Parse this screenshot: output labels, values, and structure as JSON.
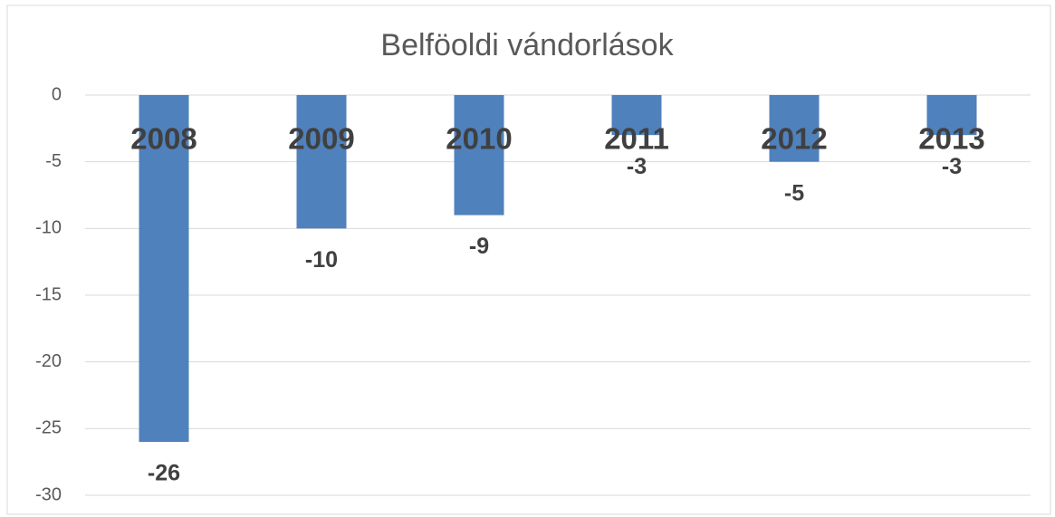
{
  "chart_data": {
    "type": "bar",
    "title": "Belföoldi vándorlások",
    "categories": [
      "2008",
      "2009",
      "2010",
      "2011",
      "2012",
      "2013"
    ],
    "values": [
      -26,
      -10,
      -9,
      -3,
      -5,
      -3
    ],
    "color": "#4f81bd",
    "ylim": [
      -30,
      0
    ],
    "yticks": [
      0,
      -5,
      -10,
      -15,
      -20,
      -25,
      -30
    ],
    "grid": true
  }
}
